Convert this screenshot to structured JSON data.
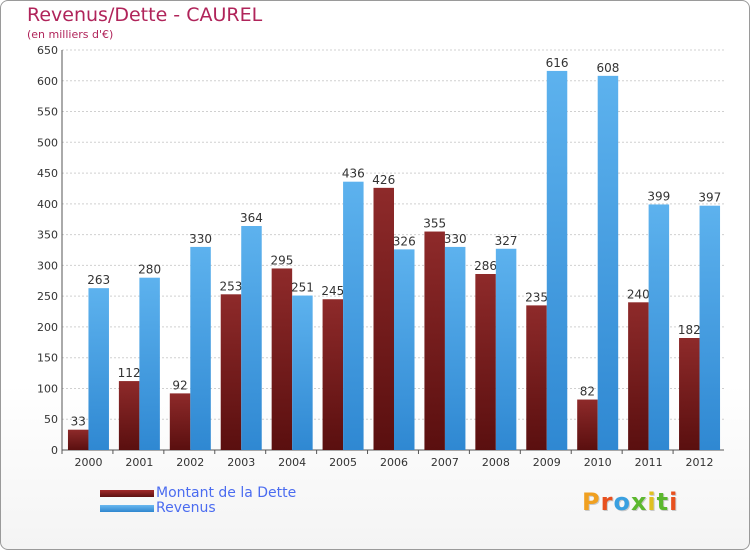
{
  "title": "Revenus/Dette - CAUREL",
  "subtitle": "(en milliers d'€)",
  "logo": "Proxiti",
  "colors": {
    "title": "#b0245a",
    "dette": "#7a1c1c",
    "revenus": "#4aa3e6",
    "legend_text": "#4b6cf0"
  },
  "chart_data": {
    "type": "bar",
    "categories": [
      "2000",
      "2001",
      "2002",
      "2003",
      "2004",
      "2005",
      "2006",
      "2007",
      "2008",
      "2009",
      "2010",
      "2011",
      "2012"
    ],
    "series": [
      {
        "name": "Montant de la Dette",
        "values": [
          33,
          112,
          92,
          253,
          295,
          245,
          426,
          355,
          286,
          235,
          82,
          240,
          182
        ]
      },
      {
        "name": "Revenus",
        "values": [
          263,
          280,
          330,
          364,
          251,
          436,
          326,
          330,
          327,
          616,
          608,
          399,
          397
        ]
      }
    ],
    "ylim": [
      0,
      650
    ],
    "yticks": [
      0,
      50,
      100,
      150,
      200,
      250,
      300,
      350,
      400,
      450,
      500,
      550,
      600,
      650
    ],
    "grid": true,
    "legend": "bottom-left"
  }
}
